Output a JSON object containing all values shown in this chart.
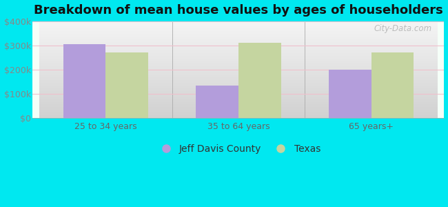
{
  "title": "Breakdown of mean house values by ages of householders",
  "categories": [
    "25 to 34 years",
    "35 to 64 years",
    "65 years+"
  ],
  "jeff_davis": [
    305000,
    135000,
    200000
  ],
  "texas": [
    270000,
    310000,
    270000
  ],
  "jeff_davis_color": "#b39ddb",
  "texas_color": "#c5d5a0",
  "background_outer": "#00e8f0",
  "background_inner_top": "#f5fff8",
  "background_inner_bottom": "#d8f5d8",
  "ylim": [
    0,
    400000
  ],
  "yticks": [
    0,
    100000,
    200000,
    300000,
    400000
  ],
  "ytick_labels": [
    "$0",
    "$100k",
    "$200k",
    "$300k",
    "$400k"
  ],
  "legend_jeff": "Jeff Davis County",
  "legend_texas": "Texas",
  "bar_width": 0.32,
  "title_fontsize": 13,
  "tick_fontsize": 9,
  "legend_fontsize": 10,
  "gridline_color": "#f0c0cc",
  "watermark": "City-Data.com",
  "tick_color": "#888888",
  "xtick_color": "#666666"
}
